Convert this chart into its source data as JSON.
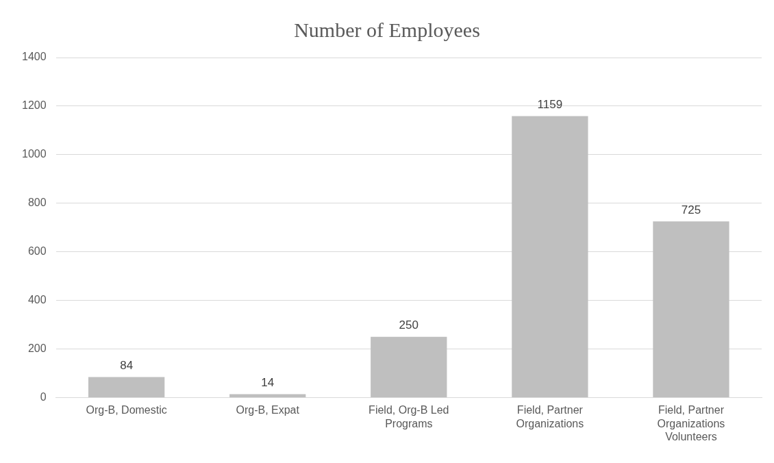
{
  "chart_data": {
    "type": "bar",
    "title": "Number of Employees",
    "categories": [
      "Org-B, Domestic",
      "Org-B, Expat",
      "Field, Org-B Led Programs",
      "Field, Partner Organizations",
      "Field, Partner Organizations Volunteers"
    ],
    "values": [
      84,
      14,
      250,
      1159,
      725
    ],
    "color": "#bfbfbf",
    "ylim": [
      0,
      1400
    ],
    "yticks": [
      0,
      200,
      400,
      600,
      800,
      1000,
      1200,
      1400
    ],
    "grid": "y",
    "data_labels": true,
    "legend": false
  }
}
